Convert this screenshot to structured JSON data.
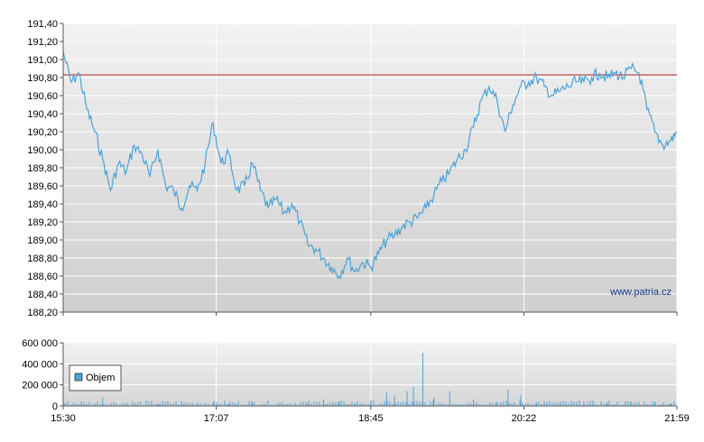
{
  "chart_data": [
    {
      "type": "line",
      "ylim": [
        188.2,
        191.4
      ],
      "y_ticks": [
        "191,40",
        "191,20",
        "191,00",
        "190,80",
        "190,60",
        "190,40",
        "190,20",
        "190,00",
        "189,80",
        "189,60",
        "189,40",
        "189,20",
        "189,00",
        "188,80",
        "188,60",
        "188,40",
        "188,20"
      ],
      "reference_line": 190.83,
      "x_range": [
        "15:30",
        "21:59"
      ],
      "grid": true,
      "watermark": "www.patria.cz",
      "colors": {
        "line": "#4aa3d6",
        "reference": "#b22222"
      },
      "series": [
        {
          "points": [
            [
              "15:30",
              191.08
            ],
            [
              "15:35",
              190.75
            ],
            [
              "15:40",
              190.85
            ],
            [
              "15:45",
              190.45
            ],
            [
              "15:50",
              190.2
            ],
            [
              "15:55",
              189.9
            ],
            [
              "16:00",
              189.55
            ],
            [
              "16:05",
              189.85
            ],
            [
              "16:10",
              189.75
            ],
            [
              "16:15",
              190.05
            ],
            [
              "16:20",
              189.95
            ],
            [
              "16:25",
              189.7
            ],
            [
              "16:30",
              190.0
            ],
            [
              "16:35",
              189.6
            ],
            [
              "16:40",
              189.55
            ],
            [
              "16:45",
              189.35
            ],
            [
              "16:50",
              189.6
            ],
            [
              "16:55",
              189.55
            ],
            [
              "17:00",
              189.85
            ],
            [
              "17:05",
              190.3
            ],
            [
              "17:10",
              189.85
            ],
            [
              "17:15",
              189.95
            ],
            [
              "17:20",
              189.55
            ],
            [
              "17:25",
              189.6
            ],
            [
              "17:30",
              189.85
            ],
            [
              "17:35",
              189.55
            ],
            [
              "17:40",
              189.35
            ],
            [
              "17:45",
              189.45
            ],
            [
              "17:50",
              189.3
            ],
            [
              "17:55",
              189.4
            ],
            [
              "18:00",
              189.2
            ],
            [
              "18:05",
              188.95
            ],
            [
              "18:10",
              188.9
            ],
            [
              "18:15",
              188.8
            ],
            [
              "18:20",
              188.7
            ],
            [
              "18:25",
              188.6
            ],
            [
              "18:30",
              188.8
            ],
            [
              "18:35",
              188.65
            ],
            [
              "18:40",
              188.75
            ],
            [
              "18:45",
              188.7
            ],
            [
              "18:50",
              188.85
            ],
            [
              "18:55",
              189.0
            ],
            [
              "19:00",
              189.05
            ],
            [
              "19:05",
              189.15
            ],
            [
              "19:10",
              189.2
            ],
            [
              "19:15",
              189.25
            ],
            [
              "19:20",
              189.35
            ],
            [
              "19:25",
              189.5
            ],
            [
              "19:30",
              189.65
            ],
            [
              "19:35",
              189.75
            ],
            [
              "19:40",
              189.9
            ],
            [
              "19:45",
              190.0
            ],
            [
              "19:50",
              190.25
            ],
            [
              "19:55",
              190.55
            ],
            [
              "20:00",
              190.7
            ],
            [
              "20:05",
              190.55
            ],
            [
              "20:10",
              190.2
            ],
            [
              "20:15",
              190.5
            ],
            [
              "20:20",
              190.7
            ],
            [
              "20:25",
              190.75
            ],
            [
              "20:30",
              190.8
            ],
            [
              "20:35",
              190.7
            ],
            [
              "20:40",
              190.6
            ],
            [
              "20:45",
              190.65
            ],
            [
              "20:50",
              190.7
            ],
            [
              "20:55",
              190.75
            ],
            [
              "21:00",
              190.75
            ],
            [
              "21:05",
              190.8
            ],
            [
              "21:10",
              190.85
            ],
            [
              "21:15",
              190.8
            ],
            [
              "21:20",
              190.85
            ],
            [
              "21:25",
              190.8
            ],
            [
              "21:30",
              190.9
            ],
            [
              "21:35",
              190.85
            ],
            [
              "21:40",
              190.45
            ],
            [
              "21:45",
              190.2
            ],
            [
              "21:50",
              190.05
            ],
            [
              "21:55",
              190.1
            ],
            [
              "21:59",
              190.2
            ]
          ]
        }
      ]
    },
    {
      "type": "bar",
      "ylim": [
        0,
        600000
      ],
      "y_ticks": [
        "600 000",
        "400 000",
        "200 000",
        "0"
      ],
      "x_ticks": [
        "15:30",
        "17:07",
        "18:45",
        "20:22",
        "21:59"
      ],
      "legend": "Objem",
      "legend_position": "left",
      "grid": true,
      "colors": {
        "bars": "#4aa3d6"
      },
      "series": [
        {
          "name": "Objem",
          "points": [
            [
              "15:30",
              30000
            ],
            [
              "15:45",
              15000
            ],
            [
              "15:55",
              80000
            ],
            [
              "16:10",
              10000
            ],
            [
              "16:30",
              20000
            ],
            [
              "16:55",
              25000
            ],
            [
              "17:05",
              30000
            ],
            [
              "17:15",
              20000
            ],
            [
              "17:30",
              25000
            ],
            [
              "17:50",
              15000
            ],
            [
              "18:05",
              20000
            ],
            [
              "18:15",
              60000
            ],
            [
              "18:25",
              40000
            ],
            [
              "18:35",
              30000
            ],
            [
              "18:45",
              50000
            ],
            [
              "18:55",
              130000
            ],
            [
              "19:00",
              100000
            ],
            [
              "19:08",
              140000
            ],
            [
              "19:12",
              180000
            ],
            [
              "19:18",
              505000
            ],
            [
              "19:25",
              80000
            ],
            [
              "19:35",
              140000
            ],
            [
              "19:50",
              60000
            ],
            [
              "20:05",
              40000
            ],
            [
              "20:12",
              150000
            ],
            [
              "20:20",
              100000
            ],
            [
              "20:30",
              30000
            ],
            [
              "20:45",
              20000
            ],
            [
              "21:00",
              40000
            ],
            [
              "21:15",
              20000
            ],
            [
              "21:30",
              40000
            ],
            [
              "21:45",
              35000
            ],
            [
              "21:55",
              20000
            ]
          ]
        }
      ]
    }
  ]
}
